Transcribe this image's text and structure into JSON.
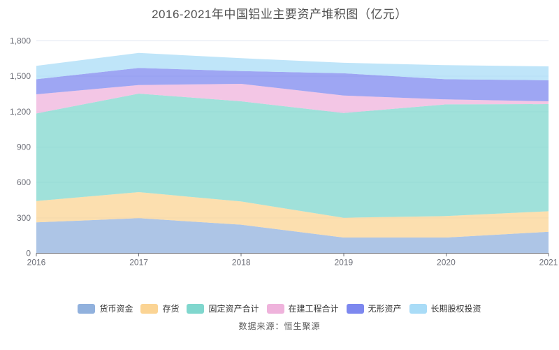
{
  "title": "2016-2021年中国铝业主要资产堆积图（亿元）",
  "source": "数据来源：恒生聚源",
  "chart_data": {
    "type": "area",
    "stacked": true,
    "title": "2016-2021年中国铝业主要资产堆积图（亿元）",
    "x_categories": [
      "2016",
      "2017",
      "2018",
      "2019",
      "2020",
      "2021"
    ],
    "series": [
      {
        "name": "货币资金",
        "color": "#91B1DD",
        "values": [
          262,
          297,
          242,
          133,
          133,
          182
        ]
      },
      {
        "name": "存货",
        "color": "#FBD494",
        "values": [
          181,
          221,
          197,
          168,
          182,
          174
        ]
      },
      {
        "name": "固定资产合计",
        "color": "#80D7CE",
        "values": [
          742,
          835,
          849,
          888,
          947,
          908
        ]
      },
      {
        "name": "在建工程合计",
        "color": "#EFB3DC",
        "values": [
          162,
          73,
          148,
          148,
          42,
          24
        ]
      },
      {
        "name": "无形资产",
        "color": "#7D88EF",
        "values": [
          128,
          144,
          108,
          188,
          171,
          178
        ]
      },
      {
        "name": "长期股权投资",
        "color": "#A9DCF7",
        "values": [
          113,
          128,
          109,
          89,
          119,
          118
        ]
      }
    ],
    "ylim": [
      0,
      1800
    ],
    "ytick_step": 300,
    "ytick_labels": [
      "0",
      "300",
      "600",
      "900",
      "1,200",
      "1,500",
      "1,800"
    ],
    "grid": true,
    "legend_position": "bottom",
    "fill_opacity": 0.75,
    "grid_color": "#E0E6F1",
    "axis_color": "#6E7079",
    "unit": "亿元"
  }
}
